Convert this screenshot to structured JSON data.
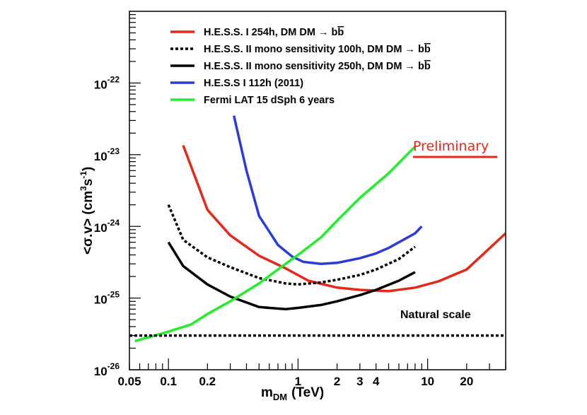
{
  "chart_data": {
    "type": "line",
    "xscale": "log",
    "yscale": "log",
    "xlim": [
      0.05,
      40
    ],
    "ylim": [
      1e-26,
      1e-21
    ],
    "xlabel_main": "m",
    "xlabel_sub": "DM",
    "xlabel_unit": "(TeV)",
    "ylabel_main": "<σ.v>  (cm",
    "ylabel_sup": "3",
    "ylabel_mid": "s",
    "ylabel_sup2": "-1",
    "ylabel_end": ")",
    "x_ticks": [
      {
        "value": 0.05,
        "label": "0.05"
      },
      {
        "value": 0.1,
        "label": "0.1"
      },
      {
        "value": 0.2,
        "label": "0.2"
      },
      {
        "value": 1,
        "label": "1"
      },
      {
        "value": 2,
        "label": "2"
      },
      {
        "value": 3,
        "label": "3"
      },
      {
        "value": 4,
        "label": "4"
      },
      {
        "value": 10,
        "label": "10"
      },
      {
        "value": 20,
        "label": "20"
      }
    ],
    "y_ticks": [
      {
        "exp": -26,
        "base": "10",
        "sup": "-26"
      },
      {
        "exp": -25,
        "base": "10",
        "sup": "-25"
      },
      {
        "exp": -24,
        "base": "10",
        "sup": "-24"
      },
      {
        "exp": -23,
        "base": "10",
        "sup": "-23"
      },
      {
        "exp": -22,
        "base": "10",
        "sup": "-22"
      }
    ],
    "legend_position": "top-left",
    "series": [
      {
        "name": "H.E.S.S. I 254h, DM DM → b",
        "bar_text": "b",
        "color": "#e8271a",
        "dash": "solid",
        "points": [
          [
            0.13,
            1.35e-23
          ],
          [
            0.2,
            1.7e-24
          ],
          [
            0.3,
            7.5e-25
          ],
          [
            0.5,
            3.9e-25
          ],
          [
            0.8,
            2.6e-25
          ],
          [
            1.2,
            1.75e-25
          ],
          [
            2,
            1.4e-25
          ],
          [
            3,
            1.3e-25
          ],
          [
            5,
            1.25e-25
          ],
          [
            8,
            1.4e-25
          ],
          [
            12,
            1.7e-25
          ],
          [
            20,
            2.5e-25
          ],
          [
            40,
            8e-25
          ]
        ]
      },
      {
        "name": "H.E.S.S. II mono sensitivity 100h, DM DM → b",
        "bar_text": "b",
        "color": "#000000",
        "dash": "dotted",
        "points": [
          [
            0.1,
            2e-24
          ],
          [
            0.13,
            6.5e-25
          ],
          [
            0.2,
            3.7e-25
          ],
          [
            0.3,
            2.7e-25
          ],
          [
            0.5,
            1.9e-25
          ],
          [
            0.8,
            1.6e-25
          ],
          [
            1,
            1.55e-25
          ],
          [
            1.5,
            1.65e-25
          ],
          [
            2,
            1.8e-25
          ],
          [
            3,
            2.1e-25
          ],
          [
            4,
            2.5e-25
          ],
          [
            6,
            3.5e-25
          ],
          [
            8,
            5.2e-25
          ]
        ]
      },
      {
        "name": "H.E.S.S. II mono sensitivity 250h, DM DM → b",
        "bar_text": "b",
        "color": "#000000",
        "dash": "solid",
        "points": [
          [
            0.1,
            6e-25
          ],
          [
            0.13,
            2.8e-25
          ],
          [
            0.2,
            1.55e-25
          ],
          [
            0.3,
            1.05e-25
          ],
          [
            0.5,
            7.5e-26
          ],
          [
            0.8,
            7e-26
          ],
          [
            1,
            7.3e-26
          ],
          [
            1.5,
            8e-26
          ],
          [
            2,
            9e-26
          ],
          [
            3,
            1.1e-25
          ],
          [
            4,
            1.3e-25
          ],
          [
            6,
            1.75e-25
          ],
          [
            8,
            2.3e-25
          ]
        ]
      },
      {
        "name": "H.E.S.S I 112h (2011)",
        "bar_text": "",
        "color": "#2b3bdb",
        "dash": "solid",
        "points": [
          [
            0.32,
            3.5e-23
          ],
          [
            0.4,
            6e-24
          ],
          [
            0.5,
            1.4e-24
          ],
          [
            0.7,
            5.5e-25
          ],
          [
            0.9,
            3.8e-25
          ],
          [
            1.1,
            3.2e-25
          ],
          [
            1.5,
            3e-25
          ],
          [
            2,
            3.1e-25
          ],
          [
            3,
            3.6e-25
          ],
          [
            4,
            4.2e-25
          ],
          [
            5,
            5e-25
          ],
          [
            6.5,
            6.5e-25
          ],
          [
            8,
            8e-25
          ],
          [
            9,
            1e-24
          ]
        ]
      },
      {
        "name": "Fermi LAT 15 dSph 6 years",
        "bar_text": "",
        "color": "#22ee2a",
        "dash": "solid",
        "points": [
          [
            0.055,
            2.5e-26
          ],
          [
            0.1,
            3.4e-26
          ],
          [
            0.15,
            4.3e-26
          ],
          [
            0.2,
            6e-26
          ],
          [
            0.3,
            9e-26
          ],
          [
            0.5,
            1.6e-25
          ],
          [
            0.8,
            3e-25
          ],
          [
            1,
            4e-25
          ],
          [
            1.5,
            7e-25
          ],
          [
            2,
            1.2e-24
          ],
          [
            3,
            2.5e-24
          ],
          [
            5,
            5.5e-24
          ],
          [
            8,
            1.3e-23
          ]
        ]
      },
      {
        "name": "Natural scale",
        "bar_text": "",
        "color": "#000000",
        "dash": "dotted",
        "points": [
          [
            0.05,
            3e-26
          ],
          [
            40,
            3e-26
          ]
        ]
      }
    ],
    "annotations": {
      "natural_scale_label": "Natural scale",
      "preliminary_label": "Preliminary",
      "preliminary_color": "#e8271a"
    }
  }
}
